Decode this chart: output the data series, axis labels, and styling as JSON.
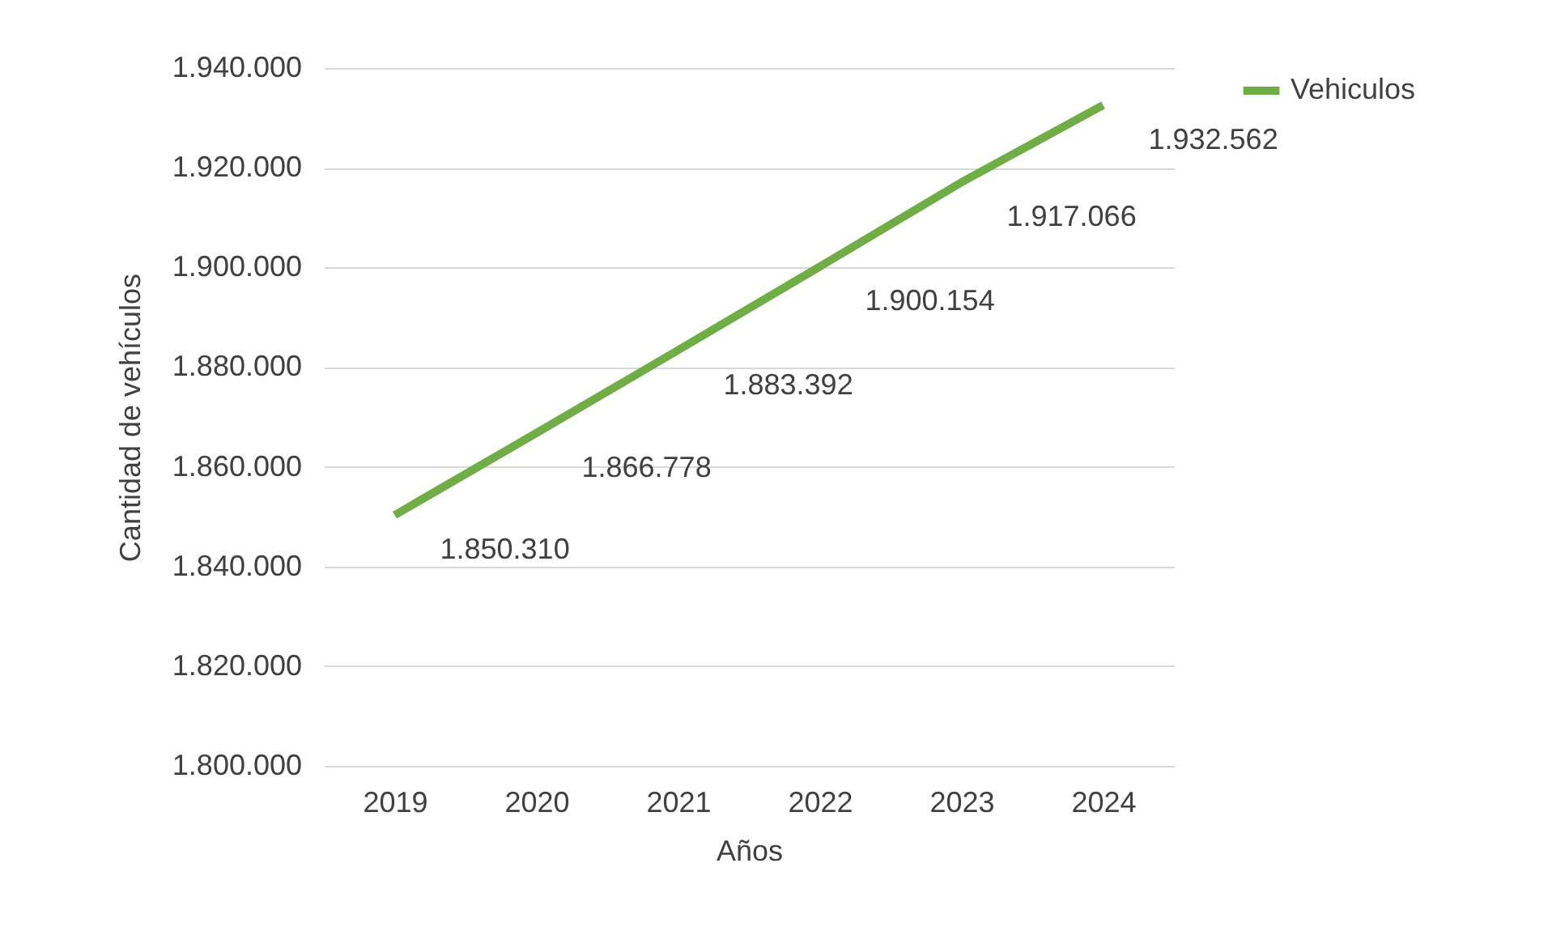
{
  "chart_data": {
    "type": "line",
    "xlabel": "Años",
    "ylabel": "Cantidad de vehículos",
    "categories": [
      "2019",
      "2020",
      "2021",
      "2022",
      "2023",
      "2024"
    ],
    "series": [
      {
        "name": "Vehiculos",
        "color": "#70ad47",
        "values": [
          1850310,
          1866778,
          1883392,
          1900154,
          1917066,
          1932562
        ],
        "value_labels": [
          "1.850.310",
          "1.866.778",
          "1.883.392",
          "1.900.154",
          "1.917.066",
          "1.932.562"
        ]
      }
    ],
    "ylim": [
      1800000,
      1940000
    ],
    "yticks": [
      {
        "value": 1800000,
        "label": "1.800.000"
      },
      {
        "value": 1820000,
        "label": "1.820.000"
      },
      {
        "value": 1840000,
        "label": "1.840.000"
      },
      {
        "value": 1860000,
        "label": "1.860.000"
      },
      {
        "value": 1880000,
        "label": "1.880.000"
      },
      {
        "value": 1900000,
        "label": "1.900.000"
      },
      {
        "value": 1920000,
        "label": "1.920.000"
      },
      {
        "value": 1940000,
        "label": "1.940.000"
      }
    ],
    "grid": "y",
    "legend": "right",
    "marker": "none",
    "line_style": "solid"
  }
}
